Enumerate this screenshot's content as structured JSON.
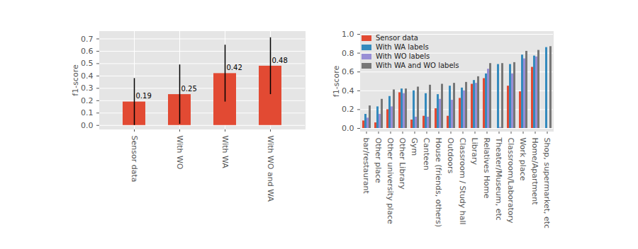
{
  "chart_data": [
    {
      "type": "bar",
      "categories": [
        "Sensor data",
        "With WO",
        "With WA",
        "With WO and WA"
      ],
      "values": [
        0.19,
        0.25,
        0.42,
        0.48
      ],
      "errors": [
        0.19,
        0.24,
        0.23,
        0.23
      ],
      "color": "#E24A33",
      "ylabel": "f1-score",
      "ylim": [
        -0.03,
        0.76
      ],
      "yticks": [
        {
          "value": 0,
          "label": "0.0"
        },
        0.1,
        0.2,
        0.3,
        0.4,
        0.5,
        0.6,
        0.7
      ],
      "grid": true,
      "data_labels": true
    },
    {
      "type": "bar",
      "categories": [
        "bar/restaurant",
        "Other place",
        "Other university place",
        "Other Library",
        "Gym",
        "Canteen",
        "House (friends, others)",
        "Outdoors",
        "Classroom / Study hall",
        "Library",
        "Relatives Home",
        "Theater/Museum, etc",
        "Classroom/Laboratory",
        "Work place",
        "Home/Apartment",
        "Shop, supermarket, etc"
      ],
      "series": [
        {
          "name": "Sensor data",
          "color": "#E24A33",
          "values": [
            0.08,
            0.06,
            0.2,
            0.38,
            0.09,
            0.13,
            0.21,
            0.13,
            0.32,
            0.47,
            0.53,
            0,
            0.45,
            0.39,
            0.65,
            0
          ]
        },
        {
          "name": "With WA labels",
          "color": "#348ABD",
          "values": [
            0.15,
            0.23,
            0.34,
            0.42,
            0.4,
            0.37,
            0.36,
            0.45,
            0.43,
            0.51,
            0.58,
            0.68,
            0.68,
            0.78,
            0.77,
            0.86
          ]
        },
        {
          "name": "With WO labels",
          "color": "#988ED5",
          "values": [
            0.11,
            0.15,
            0.23,
            0.37,
            0.12,
            0.12,
            0.31,
            0.3,
            0.4,
            0.48,
            0.63,
            0.01,
            0.58,
            0.74,
            0.76,
            0
          ]
        },
        {
          "name": "With WA and WO labels",
          "color": "#777777",
          "values": [
            0.24,
            0.31,
            0.41,
            0.42,
            0.44,
            0.46,
            0.47,
            0.48,
            0.49,
            0.55,
            0.69,
            0.69,
            0.7,
            0.82,
            0.83,
            0.87
          ]
        }
      ],
      "ylabel": "f1-score",
      "ylim": [
        -0.03,
        1.03
      ],
      "yticks": [
        {
          "value": 0,
          "label": "0.0"
        },
        0.2,
        0.4,
        0.6,
        0.8,
        {
          "value": 1,
          "label": "1.0"
        }
      ],
      "grid": true,
      "legend": "upper left"
    }
  ]
}
